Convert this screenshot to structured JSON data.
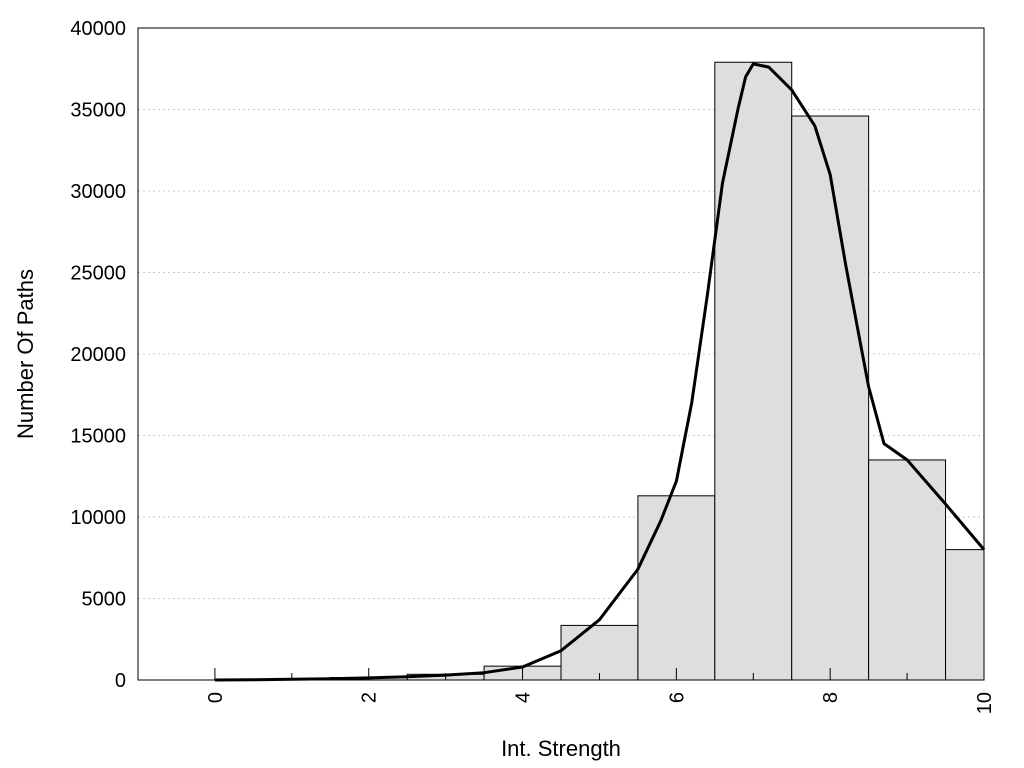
{
  "chart_data": {
    "type": "bar",
    "xlabel": "Int. Strength",
    "ylabel": "Number Of Paths",
    "xlim": [
      -1,
      10
    ],
    "ylim": [
      0,
      40000
    ],
    "x_ticks": [
      0,
      2,
      4,
      6,
      8,
      10
    ],
    "y_ticks": [
      0,
      5000,
      10000,
      15000,
      20000,
      25000,
      30000,
      35000,
      40000
    ],
    "grid": "horizontal-dotted",
    "series": [
      {
        "kind": "bars",
        "bins": [
          {
            "x0": -0.5,
            "x1": 0.5,
            "value": 0
          },
          {
            "x0": 0.5,
            "x1": 1.5,
            "value": 30
          },
          {
            "x0": 1.5,
            "x1": 2.5,
            "value": 150
          },
          {
            "x0": 2.5,
            "x1": 3.5,
            "value": 350
          },
          {
            "x0": 3.5,
            "x1": 4.5,
            "value": 850
          },
          {
            "x0": 4.5,
            "x1": 5.5,
            "value": 3350
          },
          {
            "x0": 5.5,
            "x1": 6.5,
            "value": 11300
          },
          {
            "x0": 6.5,
            "x1": 7.5,
            "value": 37900
          },
          {
            "x0": 7.5,
            "x1": 8.5,
            "value": 34600
          },
          {
            "x0": 8.5,
            "x1": 9.5,
            "value": 13500
          },
          {
            "x0": 9.5,
            "x1": 10,
            "value": 8000
          }
        ]
      },
      {
        "kind": "line",
        "x": [
          0,
          0.5,
          1,
          1.5,
          2,
          2.5,
          3,
          3.5,
          4,
          4.5,
          5,
          5.5,
          5.8,
          6,
          6.2,
          6.4,
          6.5,
          6.6,
          6.8,
          6.9,
          7,
          7.2,
          7.5,
          7.8,
          8,
          8.2,
          8.4,
          8.5,
          8.7,
          9,
          9.5,
          10
        ],
        "y": [
          0,
          20,
          40,
          80,
          130,
          200,
          300,
          450,
          800,
          1800,
          3700,
          6800,
          9800,
          12200,
          17000,
          23500,
          27000,
          30500,
          35000,
          37000,
          37800,
          37600,
          36200,
          34000,
          31000,
          25500,
          20500,
          18000,
          14500,
          13500,
          10800,
          8000
        ]
      }
    ]
  }
}
